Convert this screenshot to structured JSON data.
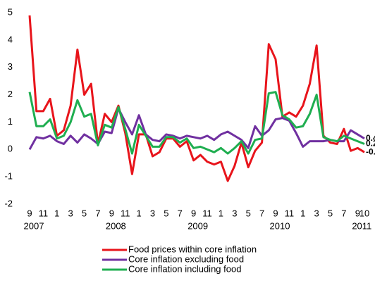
{
  "chart_data": {
    "type": "line",
    "categories": [
      "9",
      null,
      "11",
      null,
      "1",
      null,
      "3",
      null,
      "5",
      null,
      "7",
      null,
      "9",
      null,
      "11",
      null,
      "1",
      null,
      "3",
      null,
      "5",
      null,
      "7",
      null,
      "9",
      null,
      "11",
      null,
      "1",
      null,
      "3",
      null,
      "5",
      null,
      "7",
      null,
      "9",
      null,
      "11",
      null,
      "1",
      null,
      "3",
      null,
      "5",
      null,
      "7",
      null,
      "9",
      "10"
    ],
    "x_groups": [
      "2007",
      null,
      null,
      null,
      null,
      null,
      null,
      null,
      null,
      null,
      null,
      null,
      "2008",
      null,
      null,
      null,
      null,
      null,
      null,
      null,
      null,
      null,
      null,
      null,
      "2009",
      null,
      null,
      null,
      null,
      null,
      null,
      null,
      null,
      null,
      null,
      null,
      "2010",
      null,
      null,
      null,
      null,
      null,
      null,
      null,
      null,
      null,
      null,
      null,
      "2011",
      null
    ],
    "ylim": [
      -2,
      5
    ],
    "yticks": [
      -2,
      -1,
      0,
      1,
      2,
      3,
      4,
      5
    ],
    "grid": false,
    "legend": "bottom",
    "series": [
      {
        "name": "Food prices within core inflation",
        "color": "#e8141b",
        "end_label": "-0.1",
        "values": [
          4.9,
          1.4,
          1.4,
          1.85,
          0.5,
          0.7,
          1.6,
          3.65,
          2.0,
          2.4,
          0.2,
          1.3,
          1.0,
          1.6,
          0.6,
          -0.9,
          0.55,
          0.55,
          -0.25,
          -0.1,
          0.4,
          0.4,
          0.1,
          0.3,
          -0.4,
          -0.2,
          -0.45,
          -0.55,
          -0.45,
          -1.15,
          -0.6,
          0.25,
          -0.65,
          -0.05,
          0.25,
          3.85,
          3.3,
          1.2,
          1.35,
          1.2,
          1.6,
          2.4,
          3.8,
          0.5,
          0.25,
          0.2,
          0.75,
          -0.05,
          0.05,
          -0.1
        ]
      },
      {
        "name": "Core inflation excluding food",
        "color": "#7030a0",
        "end_label": "0.4",
        "values": [
          0.0,
          0.45,
          0.4,
          0.5,
          0.3,
          0.2,
          0.5,
          0.25,
          0.55,
          0.4,
          0.2,
          0.65,
          0.6,
          1.5,
          1.0,
          0.55,
          1.25,
          0.55,
          0.35,
          0.3,
          0.55,
          0.5,
          0.4,
          0.5,
          0.45,
          0.4,
          0.5,
          0.35,
          0.55,
          0.65,
          0.5,
          0.35,
          0.05,
          0.85,
          0.5,
          0.7,
          1.1,
          1.15,
          1.05,
          0.6,
          0.1,
          0.3,
          0.3,
          0.3,
          0.35,
          0.3,
          0.3,
          0.7,
          0.55,
          0.4
        ]
      },
      {
        "name": "Core inflation including food",
        "color": "#1fae50",
        "end_label": "0.2",
        "values": [
          2.1,
          0.85,
          0.85,
          1.1,
          0.4,
          0.5,
          1.0,
          1.8,
          1.2,
          1.3,
          0.15,
          0.9,
          0.8,
          1.55,
          0.75,
          -0.15,
          0.9,
          0.5,
          0.1,
          0.1,
          0.45,
          0.45,
          0.25,
          0.4,
          0.05,
          0.1,
          0.0,
          -0.1,
          0.05,
          -0.15,
          0.05,
          0.3,
          -0.15,
          0.35,
          0.4,
          2.05,
          2.1,
          1.25,
          1.1,
          0.8,
          0.85,
          1.3,
          2.0,
          0.45,
          0.35,
          0.3,
          0.5,
          0.4,
          0.3,
          0.2
        ]
      }
    ]
  }
}
